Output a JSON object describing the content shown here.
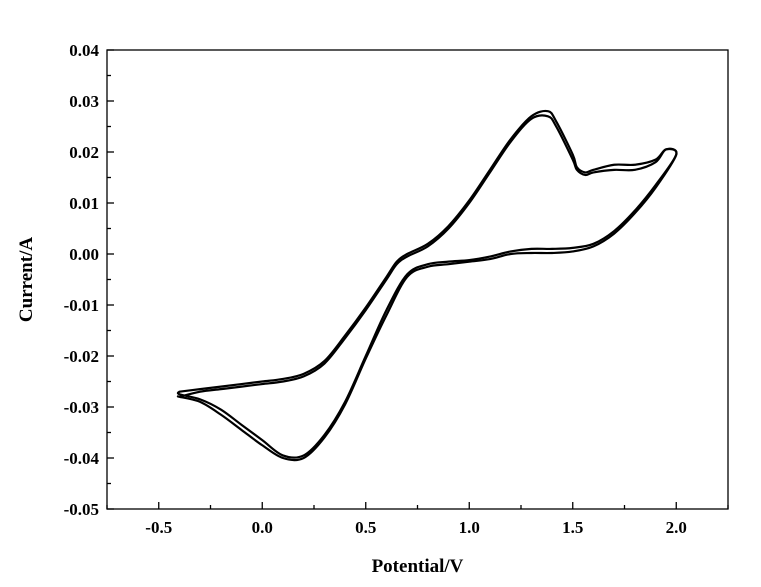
{
  "chart_data": {
    "type": "line",
    "title": "",
    "xlabel": "Potential/V",
    "ylabel": "Current/A",
    "xlim": [
      -0.75,
      2.25
    ],
    "ylim": [
      -0.05,
      0.04
    ],
    "x_ticks": [
      -0.5,
      0.0,
      0.5,
      1.0,
      1.5,
      2.0
    ],
    "x_tick_labels": [
      "-0.5",
      "0.0",
      "0.5",
      "1.0",
      "1.5",
      "2.0"
    ],
    "y_ticks": [
      0.04,
      0.03,
      0.02,
      0.01,
      0.0,
      -0.01,
      -0.02,
      -0.03,
      -0.04,
      -0.05
    ],
    "y_tick_labels": [
      "0.04",
      "0.03",
      "0.02",
      "0.01",
      "0.00",
      "-0.01",
      "-0.02",
      "-0.03",
      "-0.04",
      "-0.05"
    ],
    "grid": false,
    "legend": "none",
    "series": [
      {
        "x": [
          -0.4,
          -0.3,
          -0.2,
          -0.1,
          0.0,
          0.1,
          0.2,
          0.3,
          0.4,
          0.5,
          0.6,
          0.65,
          0.7,
          0.8,
          0.9,
          1.0,
          1.1,
          1.2,
          1.3,
          1.38,
          1.42,
          1.5,
          1.52,
          1.56,
          1.6,
          1.7,
          1.8,
          1.9,
          1.95,
          2.0,
          1.9,
          1.8,
          1.7,
          1.6,
          1.5,
          1.4,
          1.3,
          1.2,
          1.1,
          1.0,
          0.9,
          0.8,
          0.7,
          0.6,
          0.5,
          0.4,
          0.3,
          0.2,
          0.1,
          0.0,
          -0.1,
          -0.2,
          -0.3,
          -0.4
        ],
        "y": [
          -0.027,
          -0.0265,
          -0.026,
          -0.0255,
          -0.025,
          -0.0245,
          -0.0235,
          -0.021,
          -0.016,
          -0.0105,
          -0.0045,
          -0.0015,
          0.0,
          0.002,
          0.0055,
          0.0105,
          0.0165,
          0.0225,
          0.027,
          0.028,
          0.026,
          0.0195,
          0.017,
          0.016,
          0.0165,
          0.0175,
          0.0175,
          0.0185,
          0.0205,
          0.0195,
          0.0135,
          0.0085,
          0.0045,
          0.002,
          0.0012,
          0.001,
          0.001,
          0.0005,
          -0.0005,
          -0.0012,
          -0.0015,
          -0.002,
          -0.004,
          -0.011,
          -0.02,
          -0.029,
          -0.0355,
          -0.0395,
          -0.0395,
          -0.0365,
          -0.0335,
          -0.0305,
          -0.0285,
          -0.0275
        ]
      },
      {
        "x": [
          -0.4,
          -0.3,
          -0.2,
          -0.1,
          0.0,
          0.1,
          0.2,
          0.3,
          0.4,
          0.5,
          0.6,
          0.65,
          0.7,
          0.8,
          0.9,
          1.0,
          1.1,
          1.2,
          1.3,
          1.38,
          1.42,
          1.5,
          1.52,
          1.56,
          1.6,
          1.7,
          1.8,
          1.9,
          1.95,
          2.0,
          1.9,
          1.8,
          1.7,
          1.6,
          1.5,
          1.4,
          1.3,
          1.2,
          1.1,
          1.0,
          0.9,
          0.8,
          0.7,
          0.6,
          0.5,
          0.4,
          0.3,
          0.2,
          0.1,
          0.0,
          -0.1,
          -0.2,
          -0.3,
          -0.4
        ],
        "y": [
          -0.028,
          -0.027,
          -0.0265,
          -0.026,
          -0.0255,
          -0.025,
          -0.024,
          -0.0215,
          -0.0165,
          -0.011,
          -0.005,
          -0.002,
          -0.0005,
          0.0015,
          0.005,
          0.01,
          0.016,
          0.022,
          0.0265,
          0.027,
          0.025,
          0.0185,
          0.0165,
          0.0155,
          0.016,
          0.0165,
          0.0165,
          0.018,
          0.0205,
          0.0195,
          0.013,
          0.008,
          0.004,
          0.0015,
          0.0005,
          0.0002,
          0.0002,
          0.0,
          -0.001,
          -0.0015,
          -0.002,
          -0.0025,
          -0.0045,
          -0.012,
          -0.0205,
          -0.0295,
          -0.036,
          -0.04,
          -0.04,
          -0.0375,
          -0.0345,
          -0.0315,
          -0.029,
          -0.028
        ]
      }
    ]
  }
}
